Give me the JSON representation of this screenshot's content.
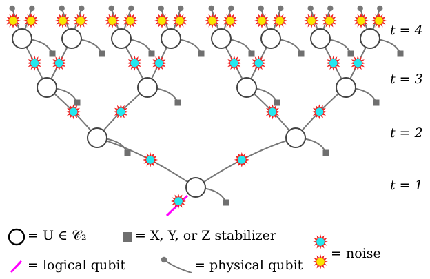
{
  "time_labels": {
    "t4": "t = 4",
    "t3": "t = 3",
    "t2": "t = 2",
    "t1": "t = 1"
  },
  "legend": {
    "gate": "= U ∈ 𝒞₂",
    "stabilizer": "= X, Y, or Z stabilizer",
    "noise": "= noise",
    "logical": "= logical qubit",
    "physical": "= physical qubit"
  },
  "colors": {
    "wire": "#777777",
    "node_stroke": "#444444",
    "stabilizer": "#6f6f6f",
    "noise_inner_cyan": "#22e8f0",
    "noise_inner_yellow": "#f7e600",
    "noise_outer": "#ee2222",
    "logical": "#ff00ff"
  },
  "icons": [
    "circle-gate-icon",
    "stabilizer-square-icon",
    "noise-burst-icon",
    "logical-qubit-icon",
    "physical-qubit-icon"
  ]
}
